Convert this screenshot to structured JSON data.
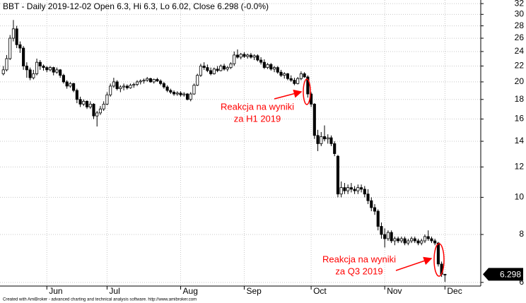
{
  "chart_data": {
    "type": "candlestick",
    "title": "BBT - Daily 2019-12-02 Open 6.3, Hi 6.3, Lo 6.02, Close 6.298 (-0.0%)",
    "footer": "Created with AmiBroker - advanced charting and technical analysis software. http://www.amibroker.com",
    "log_scale": true,
    "grid": true,
    "ylim": [
      5.87,
      32.7
    ],
    "yticks": [
      6,
      8,
      10,
      12,
      14,
      16,
      18,
      20,
      22,
      24,
      26,
      28,
      30,
      32
    ],
    "xlim": [
      -1,
      142.7
    ],
    "xticks": [
      {
        "value": 13,
        "label": "Jun"
      },
      {
        "value": 31,
        "label": "Jul"
      },
      {
        "value": 53,
        "label": "Aug"
      },
      {
        "value": 72,
        "label": "Sep"
      },
      {
        "value": 92,
        "label": "Oct"
      },
      {
        "value": 114,
        "label": "Nov"
      },
      {
        "value": 132,
        "label": "Dec"
      }
    ],
    "up_color": "#ffffff",
    "down_color": "#000000",
    "annotations": [
      {
        "lines": [
          "Reakcja na wyniki",
          "za H1 2019"
        ],
        "color": "#ff0000"
      },
      {
        "lines": [
          "Reakcja na wyniki",
          "za Q3 2019"
        ],
        "color": "#ff0000"
      }
    ],
    "ohlc": [
      [
        21.0,
        22.0,
        20.8,
        21.5
      ],
      [
        21.5,
        23.5,
        21.3,
        23.0
      ],
      [
        23.0,
        26.5,
        22.8,
        26.0
      ],
      [
        26.0,
        29.0,
        25.5,
        27.5
      ],
      [
        27.5,
        28.0,
        24.5,
        25.0
      ],
      [
        25.0,
        25.5,
        23.8,
        24.5
      ],
      [
        24.5,
        24.8,
        21.5,
        22.0
      ],
      [
        22.0,
        22.5,
        20.5,
        21.5
      ],
      [
        21.5,
        21.8,
        20.2,
        20.5
      ],
      [
        20.5,
        21.5,
        20.3,
        21.0
      ],
      [
        21.0,
        23.0,
        20.8,
        22.5
      ],
      [
        22.5,
        22.8,
        21.5,
        22.0
      ],
      [
        22.0,
        22.2,
        21.4,
        21.8
      ],
      [
        21.8,
        22.0,
        21.2,
        21.5
      ],
      [
        21.5,
        22.0,
        21.3,
        21.8
      ],
      [
        21.8,
        21.9,
        20.8,
        21.2
      ],
      [
        21.2,
        21.8,
        21.0,
        21.5
      ],
      [
        21.5,
        21.6,
        20.5,
        20.8
      ],
      [
        20.8,
        21.0,
        19.8,
        20.0
      ],
      [
        20.0,
        20.2,
        19.2,
        19.5
      ],
      [
        19.5,
        20.0,
        19.3,
        19.8
      ],
      [
        19.8,
        19.9,
        18.8,
        19.0
      ],
      [
        19.0,
        19.2,
        17.6,
        18.0
      ],
      [
        18.0,
        18.3,
        17.2,
        17.5
      ],
      [
        17.5,
        18.0,
        17.3,
        17.8
      ],
      [
        17.8,
        17.9,
        17.0,
        17.2
      ],
      [
        17.2,
        17.8,
        17.0,
        17.5
      ],
      [
        17.5,
        17.6,
        16.0,
        16.3
      ],
      [
        16.3,
        16.8,
        15.3,
        16.6
      ],
      [
        16.6,
        17.3,
        16.4,
        17.0
      ],
      [
        17.0,
        17.8,
        16.8,
        17.5
      ],
      [
        17.5,
        18.8,
        17.4,
        18.5
      ],
      [
        18.5,
        19.8,
        18.3,
        19.5
      ],
      [
        19.5,
        20.5,
        19.3,
        20.0
      ],
      [
        20.0,
        20.2,
        19.0,
        19.2
      ],
      [
        19.2,
        19.6,
        18.8,
        19.4
      ],
      [
        19.4,
        19.8,
        19.0,
        19.5
      ],
      [
        19.5,
        19.7,
        19.1,
        19.3
      ],
      [
        19.3,
        19.8,
        19.2,
        19.6
      ],
      [
        19.6,
        19.9,
        19.3,
        19.7
      ],
      [
        19.7,
        20.2,
        19.5,
        20.0
      ],
      [
        20.0,
        20.3,
        19.7,
        20.1
      ],
      [
        20.1,
        20.4,
        19.8,
        20.2
      ],
      [
        20.2,
        20.6,
        20.0,
        20.4
      ],
      [
        20.4,
        20.5,
        19.9,
        20.0
      ],
      [
        20.0,
        20.4,
        19.8,
        20.3
      ],
      [
        20.3,
        20.5,
        20.0,
        20.1
      ],
      [
        20.1,
        20.3,
        19.6,
        19.8
      ],
      [
        19.8,
        20.0,
        19.2,
        19.4
      ],
      [
        19.4,
        19.6,
        18.8,
        19.0
      ],
      [
        19.0,
        19.2,
        18.6,
        18.8
      ],
      [
        18.8,
        19.0,
        18.4,
        18.6
      ],
      [
        18.6,
        18.9,
        18.4,
        18.7
      ],
      [
        18.7,
        18.9,
        18.3,
        18.5
      ],
      [
        18.5,
        18.8,
        18.3,
        18.6
      ],
      [
        18.6,
        18.7,
        17.9,
        18.0
      ],
      [
        18.0,
        18.8,
        17.8,
        18.6
      ],
      [
        18.6,
        19.8,
        18.5,
        19.6
      ],
      [
        19.6,
        21.0,
        19.5,
        20.8
      ],
      [
        20.8,
        22.3,
        20.6,
        22.0
      ],
      [
        22.0,
        22.5,
        21.5,
        21.8
      ],
      [
        21.8,
        22.2,
        21.2,
        21.4
      ],
      [
        21.4,
        21.8,
        20.8,
        21.0
      ],
      [
        21.0,
        21.8,
        20.9,
        21.6
      ],
      [
        21.6,
        22.0,
        21.2,
        21.4
      ],
      [
        21.4,
        22.2,
        21.3,
        22.0
      ],
      [
        22.0,
        22.3,
        21.4,
        21.6
      ],
      [
        21.6,
        22.0,
        21.3,
        21.8
      ],
      [
        21.8,
        22.5,
        21.6,
        22.3
      ],
      [
        22.3,
        24.0,
        22.0,
        23.5
      ],
      [
        23.5,
        24.3,
        23.0,
        23.2
      ],
      [
        23.2,
        23.8,
        22.9,
        23.6
      ],
      [
        23.6,
        23.9,
        23.1,
        23.3
      ],
      [
        23.3,
        23.7,
        23.0,
        23.5
      ],
      [
        23.5,
        23.8,
        23.0,
        23.2
      ],
      [
        23.2,
        23.6,
        22.8,
        23.4
      ],
      [
        23.4,
        23.6,
        22.6,
        22.8
      ],
      [
        22.8,
        23.2,
        22.2,
        22.5
      ],
      [
        22.5,
        22.9,
        21.6,
        21.8
      ],
      [
        21.8,
        22.4,
        21.6,
        22.2
      ],
      [
        22.2,
        22.4,
        21.4,
        21.6
      ],
      [
        21.6,
        22.0,
        21.2,
        21.8
      ],
      [
        21.8,
        22.0,
        21.0,
        21.2
      ],
      [
        21.2,
        21.5,
        20.6,
        20.8
      ],
      [
        20.8,
        21.2,
        20.4,
        21.0
      ],
      [
        21.0,
        21.1,
        20.2,
        20.4
      ],
      [
        20.4,
        20.8,
        20.0,
        20.2
      ],
      [
        20.2,
        20.5,
        19.6,
        19.8
      ],
      [
        19.8,
        20.6,
        19.7,
        20.4
      ],
      [
        20.4,
        21.3,
        20.2,
        21.0
      ],
      [
        21.0,
        21.2,
        20.5,
        20.6
      ],
      [
        20.6,
        20.8,
        18.2,
        18.6
      ],
      [
        18.6,
        18.8,
        17.2,
        17.5
      ],
      [
        17.5,
        17.6,
        14.2,
        14.5
      ],
      [
        14.5,
        15.0,
        13.2,
        13.8
      ],
      [
        13.8,
        14.8,
        13.6,
        14.4
      ],
      [
        14.4,
        15.4,
        14.0,
        14.2
      ],
      [
        14.2,
        14.6,
        13.8,
        14.3
      ],
      [
        14.3,
        14.5,
        13.6,
        13.8
      ],
      [
        13.8,
        14.0,
        12.8,
        13.0
      ],
      [
        12.8,
        12.9,
        10.0,
        10.2
      ],
      [
        10.2,
        11.0,
        10.0,
        10.6
      ],
      [
        10.6,
        10.9,
        10.2,
        10.4
      ],
      [
        10.4,
        10.8,
        10.2,
        10.6
      ],
      [
        10.6,
        10.9,
        10.3,
        10.5
      ],
      [
        10.5,
        10.7,
        10.2,
        10.4
      ],
      [
        10.4,
        10.8,
        10.2,
        10.6
      ],
      [
        10.6,
        10.8,
        10.3,
        10.5
      ],
      [
        10.5,
        10.7,
        10.0,
        10.2
      ],
      [
        10.2,
        10.5,
        9.6,
        9.8
      ],
      [
        9.8,
        10.0,
        9.2,
        9.4
      ],
      [
        9.4,
        9.6,
        9.0,
        9.2
      ],
      [
        9.2,
        9.3,
        8.2,
        8.4
      ],
      [
        8.4,
        8.6,
        7.8,
        8.0
      ],
      [
        8.0,
        8.3,
        7.4,
        7.8
      ],
      [
        7.8,
        8.2,
        7.7,
        8.1
      ],
      [
        8.1,
        8.2,
        7.6,
        7.7
      ],
      [
        7.7,
        7.9,
        7.5,
        7.8
      ],
      [
        7.8,
        7.9,
        7.6,
        7.7
      ],
      [
        7.7,
        7.9,
        7.6,
        7.8
      ],
      [
        7.8,
        7.9,
        7.5,
        7.6
      ],
      [
        7.6,
        7.8,
        7.5,
        7.7
      ],
      [
        7.7,
        7.9,
        7.6,
        7.8
      ],
      [
        7.8,
        7.9,
        7.6,
        7.7
      ],
      [
        7.7,
        7.8,
        7.5,
        7.6
      ],
      [
        7.6,
        7.8,
        7.5,
        7.7
      ],
      [
        7.7,
        8.0,
        7.6,
        7.9
      ],
      [
        7.9,
        8.2,
        7.7,
        7.8
      ],
      [
        7.8,
        7.9,
        7.6,
        7.7
      ],
      [
        7.7,
        7.8,
        7.5,
        7.6
      ],
      [
        7.6,
        7.65,
        6.6,
        6.7
      ],
      [
        6.7,
        6.8,
        6.2,
        6.3
      ],
      [
        6.3,
        6.3,
        6.02,
        6.298
      ]
    ]
  }
}
